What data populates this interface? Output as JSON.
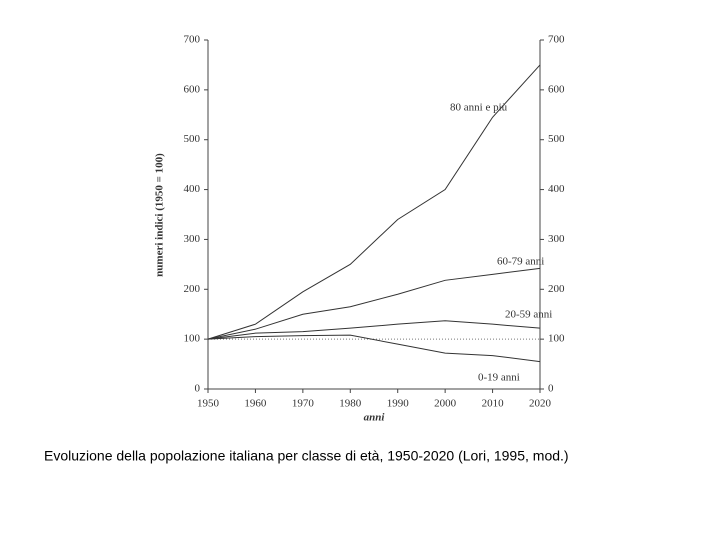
{
  "chart_data": {
    "type": "line",
    "x": [
      1950,
      1960,
      1970,
      1980,
      1990,
      2000,
      2010,
      2020
    ],
    "xlim": [
      1950,
      2020
    ],
    "xticks": [
      1950,
      1960,
      1970,
      1980,
      1990,
      2000,
      2010,
      2020
    ],
    "ylim": [
      0,
      700
    ],
    "yticks": [
      0,
      100,
      200,
      300,
      400,
      500,
      600,
      700
    ],
    "y2lim": [
      0,
      700
    ],
    "y2ticks": [
      0,
      100,
      200,
      300,
      400,
      500,
      600,
      700
    ],
    "y_label": "numeri indici (1950 = 100)",
    "x_label": "anni",
    "reference_line": 100,
    "series": [
      {
        "name": "80 anni e più",
        "color": "#333333",
        "values": [
          100,
          130,
          195,
          250,
          340,
          400,
          545,
          650
        ]
      },
      {
        "name": "60-79 anni",
        "color": "#333333",
        "values": [
          100,
          120,
          150,
          165,
          190,
          218,
          230,
          242
        ]
      },
      {
        "name": "20-59 anni",
        "color": "#333333",
        "values": [
          100,
          112,
          115,
          122,
          130,
          137,
          130,
          122
        ]
      },
      {
        "name": "0-19 anni",
        "color": "#333333",
        "values": [
          100,
          105,
          107,
          108,
          90,
          72,
          67,
          55
        ]
      }
    ],
    "caption": "Evoluzione della popolazione italiana per classe di età, 1950-2020 (Lori, 1995, mod.)"
  }
}
